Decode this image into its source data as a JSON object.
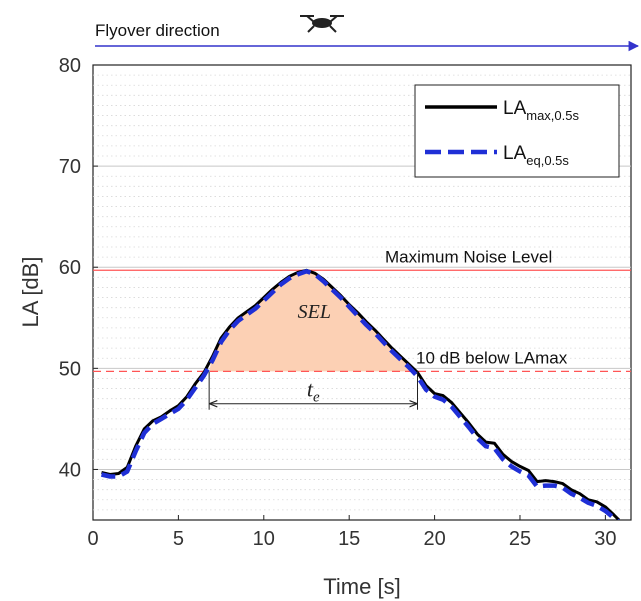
{
  "header": {
    "flyover_label": "Flyover direction",
    "icon": "drone-icon",
    "arrow_color": "#3333cc"
  },
  "chart_data": {
    "type": "line",
    "title": "",
    "xlabel": "Time [s]",
    "ylabel": "LA [dB]",
    "xlim": [
      0,
      31.5
    ],
    "ylim": [
      35,
      80
    ],
    "x_ticks": [
      0,
      5,
      10,
      15,
      20,
      25,
      30
    ],
    "y_ticks": [
      40,
      50,
      60,
      70,
      80
    ],
    "grid": "horizontal dotted minor lines",
    "legend_position": "top-right",
    "series": [
      {
        "name": "LA",
        "subscript": "max,0.5s",
        "style": "solid",
        "color": "#000000",
        "x": [
          0.5,
          1.0,
          1.5,
          2.0,
          2.5,
          3.0,
          3.5,
          4.0,
          4.5,
          5.0,
          5.5,
          6.0,
          6.5,
          7.0,
          7.5,
          8.0,
          8.5,
          9.0,
          9.5,
          10.0,
          10.5,
          11.0,
          11.5,
          12.0,
          12.5,
          13.0,
          13.5,
          14.0,
          14.5,
          15.0,
          15.5,
          16.0,
          16.5,
          17.0,
          17.5,
          18.0,
          18.5,
          19.0,
          19.5,
          20.0,
          20.5,
          21.0,
          21.5,
          22.0,
          22.5,
          23.0,
          23.5,
          24.0,
          24.5,
          25.0,
          25.5,
          26.0,
          26.5,
          27.0,
          27.5,
          28.0,
          28.5,
          29.0,
          29.5,
          30.0,
          30.5,
          30.8
        ],
        "y": [
          39.7,
          39.5,
          39.6,
          40.2,
          42.3,
          44.0,
          44.8,
          45.2,
          45.8,
          46.3,
          47.2,
          48.5,
          49.6,
          51.2,
          53.0,
          54.1,
          55.0,
          55.6,
          56.2,
          57.0,
          57.8,
          58.5,
          59.1,
          59.5,
          59.7,
          59.4,
          58.8,
          58.0,
          57.2,
          56.3,
          55.5,
          54.6,
          53.8,
          52.9,
          52.0,
          51.2,
          50.4,
          49.6,
          48.3,
          47.5,
          47.3,
          46.6,
          45.6,
          44.6,
          43.5,
          42.7,
          42.6,
          41.5,
          40.8,
          40.3,
          39.9,
          38.8,
          38.9,
          38.8,
          38.6,
          38.0,
          37.6,
          37.0,
          36.8,
          36.3,
          35.5,
          35.0
        ]
      },
      {
        "name": "LA",
        "subscript": "eq,0.5s",
        "style": "dashed",
        "color": "#1f2fd6",
        "x": [
          0.5,
          1.0,
          1.5,
          2.0,
          2.5,
          3.0,
          3.5,
          4.0,
          4.5,
          5.0,
          5.5,
          6.0,
          6.5,
          7.0,
          7.5,
          8.0,
          8.5,
          9.0,
          9.5,
          10.0,
          10.5,
          11.0,
          11.5,
          12.0,
          12.5,
          13.0,
          13.5,
          14.0,
          14.5,
          15.0,
          15.5,
          16.0,
          16.5,
          17.0,
          17.5,
          18.0,
          18.5,
          19.0,
          19.5,
          20.0,
          20.5,
          21.0,
          21.5,
          22.0,
          22.5,
          23.0,
          23.5,
          24.0,
          24.5,
          25.0,
          25.5,
          26.0,
          26.5,
          27.0,
          27.5,
          28.0,
          28.5,
          29.0,
          29.5,
          30.0,
          30.5,
          30.8
        ],
        "y": [
          39.5,
          39.3,
          39.3,
          39.8,
          41.8,
          43.6,
          44.5,
          45.0,
          45.5,
          46.0,
          46.9,
          48.1,
          49.3,
          50.8,
          52.6,
          53.8,
          54.7,
          55.3,
          55.9,
          56.7,
          57.5,
          58.3,
          58.9,
          59.3,
          59.6,
          59.3,
          58.6,
          57.8,
          57.0,
          56.1,
          55.2,
          54.3,
          53.5,
          52.6,
          51.7,
          50.9,
          50.1,
          49.2,
          47.9,
          47.2,
          46.9,
          46.2,
          45.2,
          44.2,
          43.1,
          42.3,
          42.1,
          41.0,
          40.3,
          39.8,
          39.4,
          38.3,
          38.4,
          38.4,
          38.2,
          37.6,
          37.2,
          36.7,
          36.4,
          35.9,
          35.2,
          34.8
        ]
      }
    ],
    "reference_lines": [
      {
        "label": "Maximum Noise Level",
        "y": 59.7,
        "style": "solid",
        "color": "#ff5555"
      },
      {
        "label": "10 dB below LAmax",
        "y": 49.7,
        "style": "dashed",
        "color": "#ff5555"
      }
    ],
    "shaded_region": {
      "label": "SEL",
      "x_start": 6.8,
      "x_end": 19.0,
      "color": "#fcd0b4"
    },
    "te_interval": {
      "label": "t",
      "subscript": "e",
      "x_start": 6.8,
      "x_end": 19.0,
      "y": 46.5
    }
  }
}
